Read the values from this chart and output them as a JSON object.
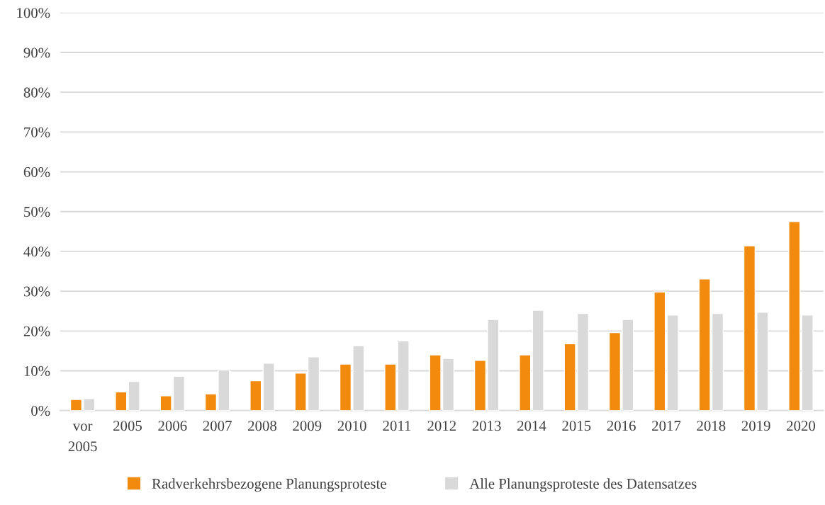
{
  "chart_data": {
    "type": "bar",
    "categories": [
      "vor\n2005",
      "2005",
      "2006",
      "2007",
      "2008",
      "2009",
      "2010",
      "2011",
      "2012",
      "2013",
      "2014",
      "2015",
      "2016",
      "2017",
      "2018",
      "2019",
      "2020"
    ],
    "series": [
      {
        "name": "Radverkehrsbezogene Planungsproteste",
        "color": "#f28a0e",
        "values": [
          2.8,
          4.7,
          3.7,
          4.2,
          7.5,
          9.4,
          11.7,
          11.7,
          14.0,
          12.6,
          14.0,
          16.8,
          19.6,
          29.8,
          33.1,
          41.4,
          47.5
        ]
      },
      {
        "name": "Alle Planungsproteste des Datensatzes",
        "color": "#d9d9d9",
        "values": [
          3.0,
          7.3,
          8.6,
          10.2,
          11.9,
          13.5,
          16.3,
          17.5,
          13.1,
          22.9,
          25.2,
          24.4,
          22.9,
          24.0,
          24.4,
          24.7,
          24.0
        ]
      }
    ],
    "ylim": [
      0,
      100
    ],
    "yticks": [
      {
        "value": 0,
        "label": "0%"
      },
      {
        "value": 10,
        "label": "10%"
      },
      {
        "value": 20,
        "label": "20%"
      },
      {
        "value": 30,
        "label": "30%"
      },
      {
        "value": 40,
        "label": "40%"
      },
      {
        "value": 50,
        "label": "50%"
      },
      {
        "value": 60,
        "label": "60%"
      },
      {
        "value": 70,
        "label": "70%"
      },
      {
        "value": 80,
        "label": "80%"
      },
      {
        "value": 90,
        "label": "90%"
      },
      {
        "value": 100,
        "label": "100%"
      }
    ],
    "grid": "y",
    "legend": "bottom"
  }
}
